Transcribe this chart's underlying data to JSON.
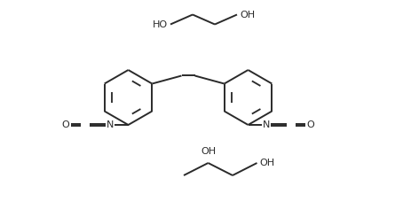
{
  "bg_color": "#ffffff",
  "line_color": "#2a2a2a",
  "line_width": 1.4,
  "text_color": "#2a2a2a",
  "font_size": 8.0,
  "fig_width": 4.54,
  "fig_height": 2.45,
  "dpi": 100,
  "xlim": [
    0,
    9
  ],
  "ylim": [
    0,
    4.9
  ]
}
